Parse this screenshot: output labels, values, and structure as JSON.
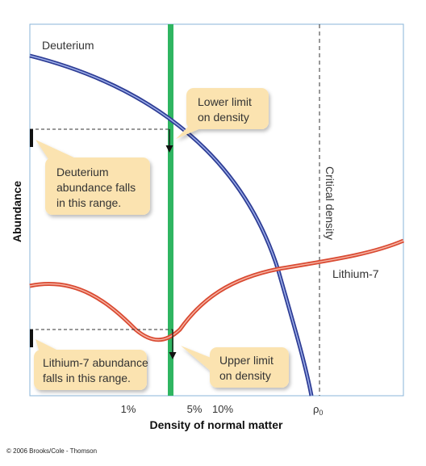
{
  "labels": {
    "deuterium": "Deuterium",
    "lithium": "Lithium-7",
    "critical_density": "Critical density"
  },
  "axes": {
    "x_title": "Density of normal matter",
    "y_title": "Abundance",
    "x_ticks": [
      "1%",
      "5%",
      "10%"
    ],
    "rho_symbol": "ρ",
    "rho_subscript": "0"
  },
  "callouts": {
    "lower_limit": [
      "Lower limit",
      "on density"
    ],
    "upper_limit": [
      "Upper limit",
      "on density"
    ],
    "deuterium_range": [
      "Deuterium",
      "abundance falls",
      "in this range."
    ],
    "lithium_range": [
      "Lithium-7 abundance",
      "falls in this range."
    ]
  },
  "credit": "© 2006 Brooks/Cole - Thomson",
  "colors": {
    "deuterium_curve": "#3b4fb0",
    "lithium_curve": "#e0543a",
    "density_band": "#2fb561",
    "callout_fill": "#fbe3b0",
    "frame": "#8ab4d8"
  }
}
